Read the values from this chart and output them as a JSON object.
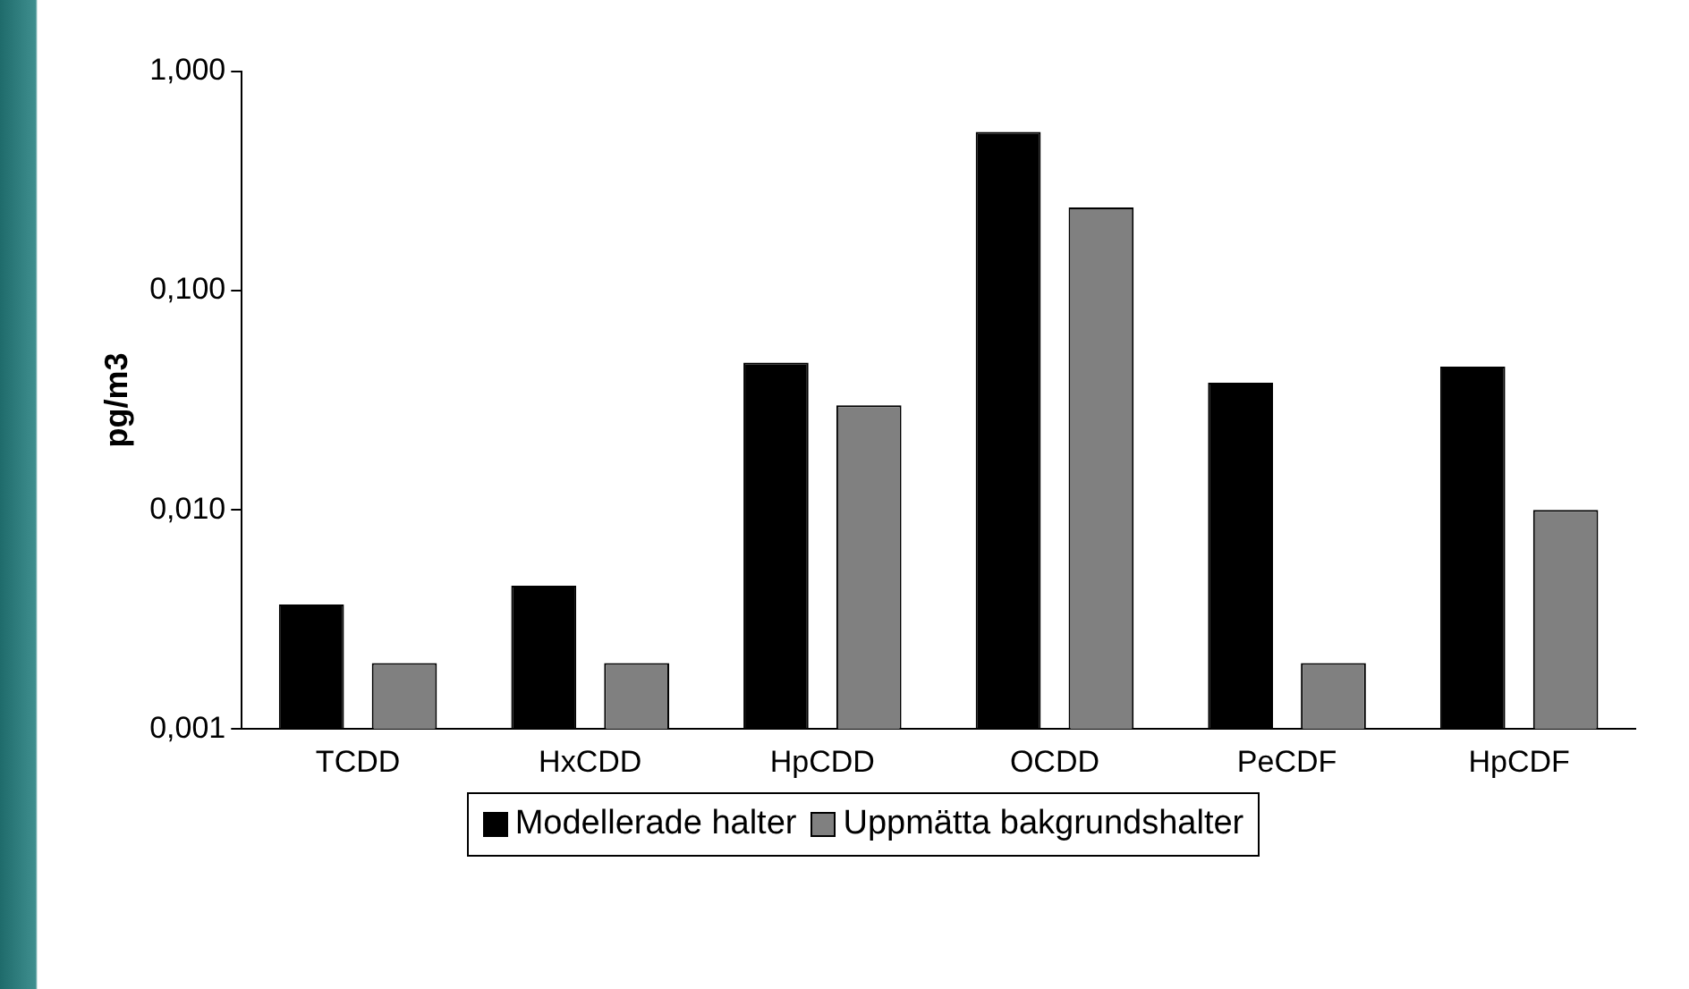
{
  "chart_data": {
    "type": "bar",
    "ylabel": "pg/m3",
    "categories": [
      "TCDD",
      "HxCDD",
      "HpCDD",
      "OCDD",
      "PeCDF",
      "HpCDF"
    ],
    "series": [
      {
        "name": "Modellerade halter",
        "color": "#000000",
        "values": [
          0.0037,
          0.0045,
          0.047,
          0.53,
          0.038,
          0.045
        ]
      },
      {
        "name": "Uppmätta bakgrundshalter",
        "color": "#808080",
        "values": [
          0.002,
          0.002,
          0.03,
          0.24,
          0.002,
          0.01
        ]
      }
    ],
    "log": "y",
    "ylim": [
      0.001,
      1
    ],
    "yticks": [
      {
        "value": 0.001,
        "label": "0,001"
      },
      {
        "value": 0.01,
        "label": "0,010"
      },
      {
        "value": 0.1,
        "label": "0,100"
      },
      {
        "value": 1,
        "label": "1,000"
      }
    ],
    "grid": false,
    "legend": "bottom"
  }
}
